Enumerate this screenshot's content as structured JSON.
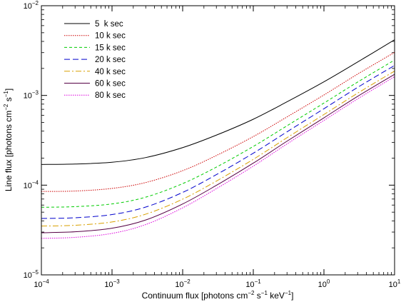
{
  "chart_data": {
    "type": "line",
    "xscale": "log",
    "yscale": "log",
    "xlim": [
      0.0001,
      10
    ],
    "ylim": [
      1e-05,
      0.01
    ],
    "xlabel": {
      "prefix": "Continuum flux [photons cm",
      "exp1": "−2",
      "mid": " s",
      "exp2": "−1",
      "mid2": " keV",
      "exp3": "−1",
      "suffix": "]"
    },
    "ylabel": {
      "prefix": "Line flux [photons cm",
      "exp1": "−2",
      "mid": " s",
      "exp2": "−1",
      "suffix": "]"
    },
    "xticks": [
      {
        "value": 0.0001,
        "base": "10",
        "exp": "−4"
      },
      {
        "value": 0.001,
        "base": "10",
        "exp": "−3"
      },
      {
        "value": 0.01,
        "base": "10",
        "exp": "−2"
      },
      {
        "value": 0.1,
        "base": "10",
        "exp": "−1"
      },
      {
        "value": 1,
        "base": "10",
        "exp": "0"
      },
      {
        "value": 10,
        "base": "10",
        "exp": "1"
      }
    ],
    "yticks": [
      {
        "value": 1e-05,
        "base": "10",
        "exp": "−5"
      },
      {
        "value": 0.0001,
        "base": "10",
        "exp": "−4"
      },
      {
        "value": 0.001,
        "base": "10",
        "exp": "−3"
      },
      {
        "value": 0.01,
        "base": "10",
        "exp": "−2"
      }
    ],
    "legend_position": "top-left",
    "x": [
      0.0001,
      0.0003,
      0.001,
      0.003,
      0.01,
      0.03,
      0.1,
      0.3,
      1,
      3,
      10
    ],
    "series": [
      {
        "name": "5  k sec",
        "color": "#000000",
        "dash": "",
        "values": [
          0.00017,
          0.000172,
          0.00018,
          0.000203,
          0.000262,
          0.000361,
          0.000543,
          0.000849,
          0.00142,
          0.00236,
          0.00417
        ]
      },
      {
        "name": "10 k sec",
        "color": "#cc0000",
        "dash": "1.5,1.5",
        "values": [
          8.5e-05,
          8.6e-05,
          9.2e-05,
          0.000107,
          0.000145,
          0.000214,
          0.000348,
          0.000576,
          0.001012,
          0.00173,
          0.00302
        ]
      },
      {
        "name": "15 k sec",
        "color": "#00cc00",
        "dash": "4,3",
        "values": [
          5.67e-05,
          5.76e-05,
          6.18e-05,
          7.35e-05,
          0.000104,
          0.000159,
          0.00027,
          0.000459,
          0.000822,
          0.00141,
          0.00248
        ]
      },
      {
        "name": "20 k sec",
        "color": "#0000cc",
        "dash": "8,4",
        "values": [
          4.25e-05,
          4.33e-05,
          4.7e-05,
          5.7e-05,
          8.3e-05,
          0.000131,
          0.000227,
          0.000393,
          0.000711,
          0.00123,
          0.00216
        ]
      },
      {
        "name": "40 k sec",
        "color": "#d8a000",
        "dash": "8,3,2,3",
        "values": [
          3.5e-05,
          3.57e-05,
          3.89e-05,
          4.75e-05,
          6.98e-05,
          0.000111,
          0.000194,
          0.000338,
          0.000613,
          0.00106,
          0.00187
        ]
      },
      {
        "name": "60 k sec",
        "color": "#550044",
        "dash": "",
        "values": [
          2.95e-05,
          3.02e-05,
          3.31e-05,
          4.09e-05,
          6.17e-05,
          9.95e-05,
          0.000176,
          0.000309,
          0.000563,
          0.000977,
          0.00172
        ]
      },
      {
        "name": "80 k sec",
        "color": "#dd00dd",
        "dash": "1.5,1.5",
        "values": [
          2.55e-05,
          2.62e-05,
          2.9e-05,
          3.64e-05,
          5.59e-05,
          9.14e-05,
          0.000163,
          0.000288,
          0.000527,
          0.000916,
          0.00162
        ]
      }
    ]
  }
}
